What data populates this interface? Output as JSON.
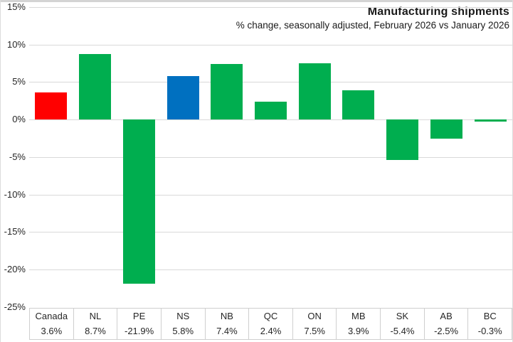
{
  "header": {
    "title": "Manufacturing shipments",
    "subtitle": "% change, seasonally adjusted, February 2026 vs January 2026"
  },
  "chart_data": {
    "type": "bar",
    "title": "Manufacturing shipments",
    "subtitle": "% change, seasonally adjusted, February 2026 vs January 2026",
    "categories": [
      "Canada",
      "NL",
      "PE",
      "NS",
      "NB",
      "QC",
      "ON",
      "MB",
      "SK",
      "AB",
      "BC"
    ],
    "values": [
      3.6,
      8.7,
      -21.9,
      5.8,
      7.4,
      2.4,
      7.5,
      3.9,
      -5.4,
      -2.5,
      -0.3
    ],
    "value_labels": [
      "3.6%",
      "8.7%",
      "-21.9%",
      "5.8%",
      "7.4%",
      "2.4%",
      "7.5%",
      "3.9%",
      "-5.4%",
      "-2.5%",
      "-0.3%"
    ],
    "xlabel": "",
    "ylabel": "",
    "ylim": [
      -25,
      15
    ],
    "ytick_step": 5,
    "ytick_labels": [
      "15%",
      "10%",
      "5%",
      "0%",
      "-5%",
      "-10%",
      "-15%",
      "-20%",
      "-25%"
    ],
    "ytick_values": [
      15,
      10,
      5,
      0,
      -5,
      -10,
      -15,
      -20,
      -25
    ],
    "grid": true,
    "legend": false,
    "data_table_shown": true,
    "bar_colors": {
      "default": "#00AE4F",
      "Canada": "#FF0000",
      "NS": "#0070C0"
    }
  },
  "colors": {
    "gridline": "#D9D9D9",
    "table_border": "#CFCFCF",
    "text": "#262626"
  }
}
